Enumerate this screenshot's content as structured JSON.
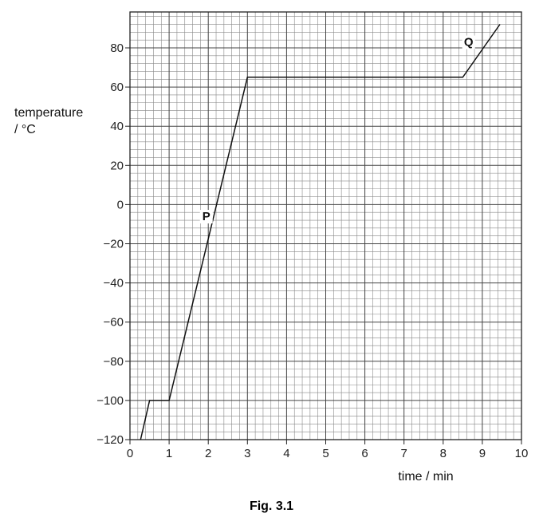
{
  "caption": "Fig. 3.1",
  "chart_data": {
    "type": "line",
    "xlabel": "time / min",
    "ylabel": [
      "temperature",
      "/ °C"
    ],
    "xlim": [
      0,
      10
    ],
    "ylim": [
      -120,
      97
    ],
    "x_ticks": [
      0,
      1,
      2,
      3,
      4,
      5,
      6,
      7,
      8,
      9,
      10
    ],
    "y_ticks": [
      -120,
      -100,
      -80,
      -60,
      -40,
      -20,
      0,
      20,
      40,
      60,
      80
    ],
    "y_tick_labels": [
      "−120",
      "−100",
      "−80",
      "−60",
      "−40",
      "−20",
      "0",
      "20",
      "40",
      "60",
      "80"
    ],
    "grid": true,
    "series": [
      {
        "x": [
          0.27,
          0.5,
          1.0,
          3.0,
          8.5,
          9.45
        ],
        "y": [
          -120,
          -100,
          -100,
          65,
          65,
          92
        ]
      }
    ],
    "annotations": [
      {
        "text": "P",
        "x": 1.95,
        "y": -8
      },
      {
        "text": "Q",
        "x": 8.65,
        "y": 81
      }
    ]
  }
}
